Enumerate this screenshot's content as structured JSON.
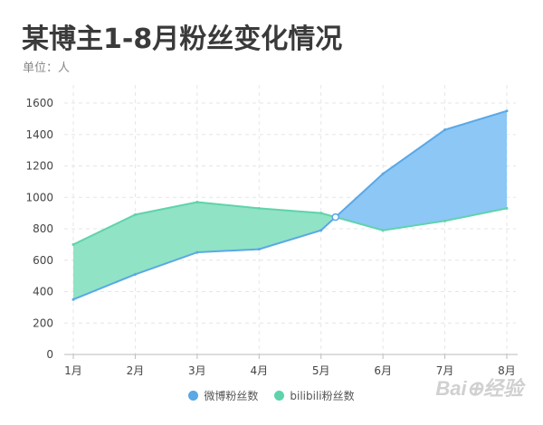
{
  "title": "某博主1-8月粉丝变化情况",
  "subtitle": "单位：人",
  "watermark": "Bai⊕经验",
  "colors": {
    "weibo": "#8ac6f5",
    "weibo_line": "#5aa8e6",
    "bilibili": "#8ee2c4",
    "bilibili_line": "#5fd3ab",
    "grid": "#e6e6e6",
    "axis": "#bbbbbb",
    "tick_text": "#444444"
  },
  "legend": [
    {
      "label": "微博粉丝数",
      "color": "#5aa8e6"
    },
    {
      "label": "bilibili粉丝数",
      "color": "#5fd3ab"
    }
  ],
  "chart_data": {
    "type": "area",
    "categories": [
      "1月",
      "2月",
      "3月",
      "4月",
      "5月",
      "6月",
      "7月",
      "8月"
    ],
    "series": [
      {
        "name": "微博粉丝数",
        "values": [
          350,
          510,
          650,
          670,
          790,
          1150,
          1430,
          1550
        ]
      },
      {
        "name": "bilibili粉丝数",
        "values": [
          700,
          890,
          970,
          930,
          900,
          790,
          850,
          930
        ]
      }
    ],
    "ylim": [
      0,
      1600
    ],
    "yticks": [
      0,
      200,
      400,
      600,
      800,
      1000,
      1200,
      1400,
      1600
    ],
    "grid": true,
    "legend_position": "bottom",
    "note": "area between the two series is filled with the color of whichever series is higher"
  }
}
